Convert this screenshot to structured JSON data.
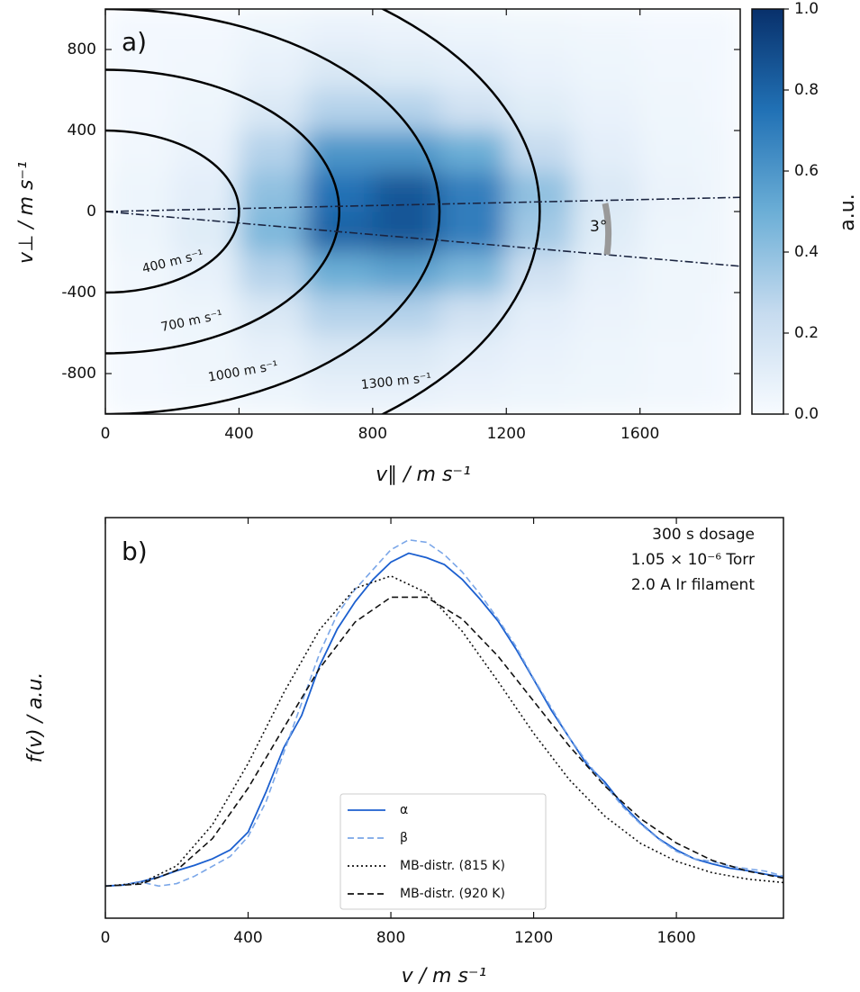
{
  "chart_data": [
    {
      "type": "heatmap",
      "panel_label": "a)",
      "x_label": "v∥ / m s⁻¹",
      "y_label": "v⊥ / m s⁻¹",
      "xlim": [
        0,
        1900
      ],
      "ylim": [
        -1000,
        1000
      ],
      "xticks": [
        0,
        400,
        800,
        1200,
        1600
      ],
      "yticks": [
        -800,
        -400,
        0,
        400,
        800
      ],
      "x_bins": [
        0,
        200,
        400,
        600,
        800,
        1000,
        1200,
        1400,
        1600,
        1800,
        1900
      ],
      "y_bins": [
        -1000,
        -800,
        -600,
        -400,
        -200,
        0,
        200,
        400,
        600,
        800,
        1000
      ],
      "z": [
        [
          0.02,
          0.03,
          0.05,
          0.08,
          0.08,
          0.06,
          0.05,
          0.04,
          0.03,
          0.02
        ],
        [
          0.02,
          0.04,
          0.08,
          0.15,
          0.15,
          0.1,
          0.07,
          0.05,
          0.03,
          0.02
        ],
        [
          0.03,
          0.05,
          0.15,
          0.3,
          0.3,
          0.2,
          0.1,
          0.06,
          0.04,
          0.02
        ],
        [
          0.03,
          0.08,
          0.3,
          0.5,
          0.55,
          0.45,
          0.2,
          0.08,
          0.04,
          0.03
        ],
        [
          0.05,
          0.12,
          0.45,
          0.8,
          0.85,
          0.7,
          0.35,
          0.12,
          0.05,
          0.03
        ],
        [
          0.05,
          0.1,
          0.4,
          0.75,
          0.85,
          0.7,
          0.4,
          0.15,
          0.06,
          0.03
        ],
        [
          0.03,
          0.07,
          0.3,
          0.6,
          0.6,
          0.5,
          0.25,
          0.1,
          0.05,
          0.03
        ],
        [
          0.02,
          0.05,
          0.15,
          0.3,
          0.3,
          0.2,
          0.12,
          0.07,
          0.04,
          0.02
        ],
        [
          0.02,
          0.03,
          0.08,
          0.15,
          0.12,
          0.1,
          0.07,
          0.05,
          0.03,
          0.02
        ],
        [
          0.02,
          0.02,
          0.05,
          0.07,
          0.06,
          0.05,
          0.04,
          0.03,
          0.02,
          0.02
        ]
      ],
      "colormap": [
        "#f7fbff",
        "#c6dbef",
        "#6baed6",
        "#2171b5",
        "#08306b"
      ],
      "clim": [
        0,
        1
      ],
      "cticks": [
        {
          "value": 0,
          "label": "0.0"
        },
        0.2,
        0.4,
        0.6,
        0.8,
        {
          "value": 1,
          "label": "1.0"
        }
      ],
      "colorbar_label": "a.u.",
      "circles": [
        {
          "r": 400,
          "label": "400 m s⁻¹"
        },
        {
          "r": 700,
          "label": "700 m s⁻¹"
        },
        {
          "r": 1000,
          "label": "1000 m s⁻¹"
        },
        {
          "r": 1300,
          "label": "1300 m s⁻¹"
        }
      ],
      "lines": [
        {
          "x": [
            0,
            1900
          ],
          "y": [
            0,
            70
          ]
        },
        {
          "x": [
            0,
            1900
          ],
          "y": [
            0,
            -270
          ]
        }
      ],
      "angle_label": "3°"
    },
    {
      "type": "line",
      "panel_label": "b)",
      "x_label": "v / m s⁻¹",
      "y_label": "f(v) / a.u.",
      "xlim": [
        0,
        1900
      ],
      "ylim": [
        -0.065,
        0.745
      ],
      "xticks": [
        0,
        400,
        800,
        1200,
        1600
      ],
      "annotations": [
        "300 s dosage",
        "1.05 × 10⁻⁶ Torr",
        "2.0 A Ir filament"
      ],
      "legend": "lower center",
      "series": [
        {
          "name": "α",
          "color": "#1b5fcf",
          "linestyle": "solid",
          "x": [
            0,
            50,
            100,
            150,
            200,
            250,
            300,
            350,
            400,
            450,
            500,
            550,
            600,
            650,
            700,
            750,
            800,
            850,
            900,
            950,
            1000,
            1050,
            1100,
            1150,
            1200,
            1250,
            1300,
            1350,
            1400,
            1450,
            1500,
            1550,
            1600,
            1650,
            1700,
            1750,
            1800,
            1850,
            1900
          ],
          "values": [
            0,
            0.002,
            0.009,
            0.018,
            0.031,
            0.042,
            0.055,
            0.073,
            0.109,
            0.19,
            0.28,
            0.345,
            0.445,
            0.52,
            0.575,
            0.62,
            0.655,
            0.673,
            0.664,
            0.65,
            0.62,
            0.58,
            0.536,
            0.48,
            0.418,
            0.355,
            0.3,
            0.245,
            0.21,
            0.164,
            0.127,
            0.096,
            0.073,
            0.055,
            0.045,
            0.036,
            0.031,
            0.024,
            0.018
          ]
        },
        {
          "name": "β",
          "color": "#7aa6e8",
          "linestyle": "dashed",
          "x": [
            0,
            50,
            100,
            150,
            200,
            250,
            300,
            350,
            400,
            450,
            500,
            550,
            600,
            650,
            700,
            750,
            800,
            850,
            900,
            950,
            1000,
            1050,
            1100,
            1150,
            1200,
            1250,
            1300,
            1350,
            1400,
            1450,
            1500,
            1550,
            1600,
            1650,
            1700,
            1750,
            1800,
            1850,
            1900
          ],
          "values": [
            0,
            0.002,
            0.008,
            0,
            0.005,
            0.02,
            0.04,
            0.06,
            0.1,
            0.17,
            0.27,
            0.37,
            0.47,
            0.55,
            0.6,
            0.64,
            0.68,
            0.7,
            0.695,
            0.67,
            0.635,
            0.59,
            0.54,
            0.485,
            0.42,
            0.36,
            0.3,
            0.25,
            0.205,
            0.16,
            0.125,
            0.095,
            0.07,
            0.055,
            0.05,
            0.04,
            0.035,
            0.03,
            0.02
          ]
        },
        {
          "name": "MB-distr. (815 K)",
          "color": "#111111",
          "linestyle": "dotted",
          "x": [
            0,
            100,
            200,
            300,
            400,
            500,
            600,
            700,
            800,
            900,
            1000,
            1100,
            1200,
            1300,
            1400,
            1500,
            1600,
            1700,
            1800,
            1900
          ],
          "values": [
            0,
            0.006,
            0.041,
            0.124,
            0.248,
            0.391,
            0.518,
            0.602,
            0.627,
            0.593,
            0.515,
            0.414,
            0.309,
            0.215,
            0.141,
            0.086,
            0.05,
            0.027,
            0.014,
            0.007
          ]
        },
        {
          "name": "MB-distr. (920 K)",
          "color": "#111111",
          "linestyle": "dashed",
          "x": [
            0,
            100,
            200,
            300,
            400,
            500,
            600,
            700,
            800,
            900,
            1000,
            1100,
            1200,
            1300,
            1400,
            1500,
            1600,
            1700,
            1800,
            1900
          ],
          "values": [
            0,
            0.004,
            0.032,
            0.096,
            0.198,
            0.32,
            0.44,
            0.534,
            0.584,
            0.584,
            0.54,
            0.465,
            0.374,
            0.283,
            0.202,
            0.136,
            0.087,
            0.052,
            0.03,
            0.016
          ]
        }
      ]
    }
  ]
}
